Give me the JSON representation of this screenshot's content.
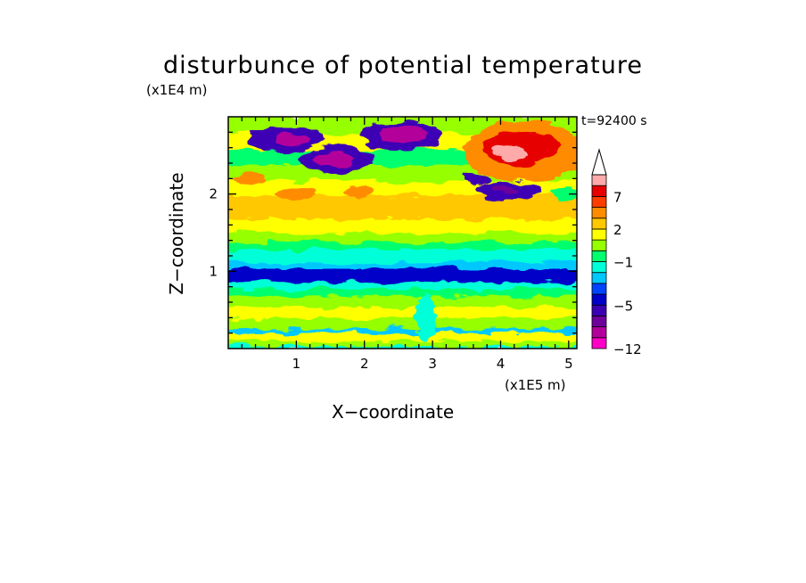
{
  "chart_data": {
    "type": "heatmap",
    "title": "disturbunce of potential temperature",
    "time_label": "t=92400 s",
    "xlabel": "X−coordinate",
    "ylabel": "Z−coordinate",
    "x_unit": "(x1E5 m)",
    "y_unit": "(x1E4 m)",
    "xlim": [
      0,
      5.12
    ],
    "ylim": [
      0,
      3.0
    ],
    "x_ticks": [
      {
        "value": 1,
        "label": "1"
      },
      {
        "value": 2,
        "label": "2"
      },
      {
        "value": 3,
        "label": "3"
      },
      {
        "value": 4,
        "label": "4"
      },
      {
        "value": 5,
        "label": "5"
      }
    ],
    "y_ticks": [
      {
        "value": 1,
        "label": "1"
      },
      {
        "value": 2,
        "label": "2"
      }
    ],
    "colorbar": {
      "levels": [
        -12,
        -10,
        -8,
        -6,
        -5,
        -4,
        -3,
        -2,
        -1,
        0,
        1,
        2,
        3,
        5,
        7,
        9,
        11
      ],
      "colors": [
        "#ff00c8",
        "#b4009b",
        "#6e009b",
        "#3c00b4",
        "#0000c8",
        "#0044ff",
        "#00c8ff",
        "#00ffd8",
        "#00ff6e",
        "#96ff00",
        "#ffff00",
        "#ffc800",
        "#ff8c00",
        "#ff3c00",
        "#e60000",
        "#ffaaaa"
      ],
      "tick_labels": [
        {
          "value": -12,
          "label": "−12"
        },
        {
          "value": -5,
          "label": "−5"
        },
        {
          "value": -1,
          "label": "−1"
        },
        {
          "value": 2,
          "label": "2"
        },
        {
          "value": 7,
          "label": "7"
        }
      ],
      "extend": "max"
    },
    "bands": [
      {
        "z": [
          0.0,
          0.05
        ],
        "value": -1.5
      },
      {
        "z": [
          0.05,
          0.12
        ],
        "value": 0.5
      },
      {
        "z": [
          0.12,
          0.22
        ],
        "value": 1.5
      },
      {
        "z": [
          0.22,
          0.28
        ],
        "value": -2.5
      },
      {
        "z": [
          0.28,
          0.42
        ],
        "value": 0.5
      },
      {
        "z": [
          0.42,
          0.56
        ],
        "value": 1.5
      },
      {
        "z": [
          0.56,
          0.7
        ],
        "value": 0.5
      },
      {
        "z": [
          0.7,
          0.8
        ],
        "value": -0.5
      },
      {
        "z": [
          0.8,
          0.88
        ],
        "value": -1.5
      },
      {
        "z": [
          0.88,
          1.05
        ],
        "value": -4.5
      },
      {
        "z": [
          1.05,
          1.14
        ],
        "value": -2.5
      },
      {
        "z": [
          1.14,
          1.3
        ],
        "value": -1.5
      },
      {
        "z": [
          1.3,
          1.4
        ],
        "value": -0.5
      },
      {
        "z": [
          1.4,
          1.52
        ],
        "value": 0.5
      },
      {
        "z": [
          1.52,
          1.7
        ],
        "value": 1.5
      },
      {
        "z": [
          1.7,
          2.0
        ],
        "value": 2.5
      },
      {
        "z": [
          2.0,
          2.2
        ],
        "value": 1.5
      },
      {
        "z": [
          2.2,
          2.4
        ],
        "value": 0.5
      },
      {
        "z": [
          2.4,
          2.6
        ],
        "value": -0.5
      },
      {
        "z": [
          2.6,
          2.8
        ],
        "value": 1.5
      },
      {
        "z": [
          2.8,
          3.0
        ],
        "value": 0.5
      }
    ],
    "features": [
      {
        "x": 0.85,
        "z": 2.72,
        "rx": 0.55,
        "rz": 0.16,
        "value": -5.5
      },
      {
        "x": 0.95,
        "z": 2.7,
        "rx": 0.25,
        "rz": 0.08,
        "value": -9
      },
      {
        "x": 1.6,
        "z": 2.45,
        "rx": 0.55,
        "rz": 0.17,
        "value": -5.5
      },
      {
        "x": 1.55,
        "z": 2.45,
        "rx": 0.3,
        "rz": 0.09,
        "value": -9
      },
      {
        "x": 2.55,
        "z": 2.76,
        "rx": 0.6,
        "rz": 0.2,
        "value": -5.5
      },
      {
        "x": 2.55,
        "z": 2.78,
        "rx": 0.35,
        "rz": 0.12,
        "value": -9
      },
      {
        "x": 4.4,
        "z": 2.55,
        "rx": 0.95,
        "rz": 0.38,
        "value": 4
      },
      {
        "x": 4.3,
        "z": 2.6,
        "rx": 0.55,
        "rz": 0.22,
        "value": 8
      },
      {
        "x": 4.15,
        "z": 2.55,
        "rx": 0.25,
        "rz": 0.1,
        "value": 10
      },
      {
        "x": 4.1,
        "z": 2.05,
        "rx": 0.5,
        "rz": 0.12,
        "value": -5.5
      },
      {
        "x": 4.05,
        "z": 2.05,
        "rx": 0.18,
        "rz": 0.05,
        "value": -7
      },
      {
        "x": 3.65,
        "z": 2.2,
        "rx": 0.2,
        "rz": 0.07,
        "value": -5.5
      },
      {
        "x": 1.0,
        "z": 2.0,
        "rx": 0.3,
        "rz": 0.08,
        "value": 4
      },
      {
        "x": 1.9,
        "z": 2.02,
        "rx": 0.2,
        "rz": 0.07,
        "value": 4
      },
      {
        "x": 0.3,
        "z": 2.2,
        "rx": 0.25,
        "rz": 0.07,
        "value": 4
      },
      {
        "x": 4.95,
        "z": 2.0,
        "rx": 0.2,
        "rz": 0.08,
        "value": -0.5
      },
      {
        "x": 2.9,
        "z": 0.4,
        "rx": 0.15,
        "rz": 0.3,
        "value": -1.5
      },
      {
        "x": 3.0,
        "z": 1.0,
        "rx": 0.6,
        "rz": 0.06,
        "value": -4.5
      }
    ]
  }
}
